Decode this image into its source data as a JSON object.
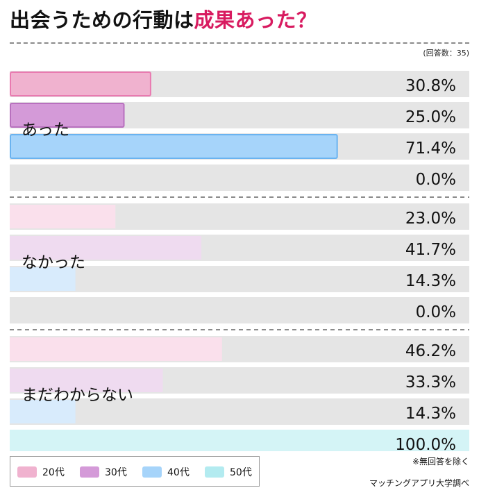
{
  "header": {
    "title_main": "出会うための行動は",
    "title_accent": "成果あった？",
    "respondents_note": "(回答数：35)"
  },
  "chart_data": {
    "type": "bar",
    "title": "出会うための行動は成果あった？",
    "orientation": "horizontal",
    "xlim": [
      0,
      100
    ],
    "unit": "%",
    "grid": false,
    "legend_placement": "bottom-left",
    "groups": [
      {
        "label": "あった",
        "values": [
          {
            "series": "20代",
            "value": 30.8,
            "label": "30.8%"
          },
          {
            "series": "30代",
            "value": 25.0,
            "label": "25.0%"
          },
          {
            "series": "40代",
            "value": 71.4,
            "label": "71.4%"
          },
          {
            "series": "50代",
            "value": 0.0,
            "label": "0.0%"
          }
        ]
      },
      {
        "label": "なかった",
        "values": [
          {
            "series": "20代",
            "value": 23.0,
            "label": "23.0%"
          },
          {
            "series": "30代",
            "value": 41.7,
            "label": "41.7%"
          },
          {
            "series": "40代",
            "value": 14.3,
            "label": "14.3%"
          },
          {
            "series": "50代",
            "value": 0.0,
            "label": "0.0%"
          }
        ]
      },
      {
        "label": "まだわからない",
        "values": [
          {
            "series": "20代",
            "value": 46.2,
            "label": "46.2%"
          },
          {
            "series": "30代",
            "value": 33.3,
            "label": "33.3%"
          },
          {
            "series": "40代",
            "value": 14.3,
            "label": "14.3%"
          },
          {
            "series": "50代",
            "value": 100.0,
            "label": "100.0%"
          }
        ]
      }
    ],
    "highlighted_group": "あった",
    "series": [
      {
        "name": "20代",
        "color": "#f0b2cf",
        "border": "#e97ab0",
        "light": "#fae0ec"
      },
      {
        "name": "30代",
        "color": "#d49ad8",
        "border": "#b870be",
        "light": "#efdbf0"
      },
      {
        "name": "40代",
        "color": "#a6d4fa",
        "border": "#6ab3f0",
        "light": "#d8ebfc"
      },
      {
        "name": "50代",
        "color": "#b3ebf0",
        "border": "#8fdbe2",
        "light": "#d4f4f6"
      }
    ],
    "track_color": "#e5e5e5"
  },
  "footer": {
    "footnote": "※無回答を除く",
    "credit": "マッチングアプリ大学調べ"
  }
}
